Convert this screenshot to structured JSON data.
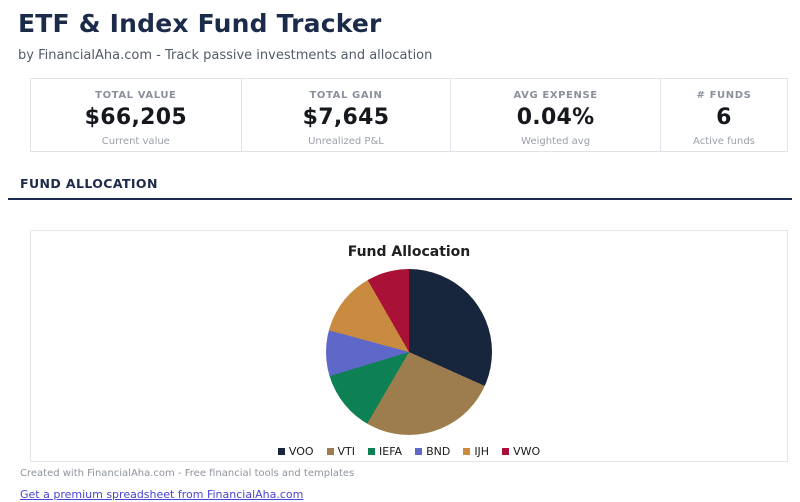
{
  "page": {
    "title": "ETF & Index Fund Tracker",
    "subtitle": "by FinancialAha.com - Track passive investments and allocation"
  },
  "stats": {
    "cards": [
      {
        "label": "TOTAL VALUE",
        "value": "$66,205",
        "sublabel": "Current value"
      },
      {
        "label": "TOTAL GAIN",
        "value": "$7,645",
        "sublabel": "Unrealized P&L"
      },
      {
        "label": "AVG EXPENSE",
        "value": "0.04%",
        "sublabel": "Weighted avg"
      },
      {
        "label": "# FUNDS",
        "value": "6",
        "sublabel": "Active funds"
      }
    ]
  },
  "section": {
    "heading": "FUND ALLOCATION"
  },
  "chart_data": {
    "type": "pie",
    "title": "Fund Allocation",
    "labels": [
      "VOO",
      "VTI",
      "IEFA",
      "BND",
      "IJH",
      "VWO"
    ],
    "values": [
      31.7,
      26.7,
      11.9,
      8.9,
      12.5,
      8.3
    ],
    "unit": "percent_of_total_allocation",
    "colors": [
      "#17263d",
      "#9d7d4e",
      "#0d8054",
      "#5d68c8",
      "#c98b3f",
      "#a91236"
    ],
    "start_angle_deg": 0,
    "direction": "clockwise",
    "legend_position": "bottom"
  },
  "footer": {
    "credit": "Created with FinancialAha.com - Free financial tools and templates",
    "link_label": "Get a premium spreadsheet from FinancialAha.com"
  },
  "theme": {
    "heading_color": "#1c2b4a",
    "rule_color": "#1b2a52",
    "link_color": "#4745d6"
  }
}
